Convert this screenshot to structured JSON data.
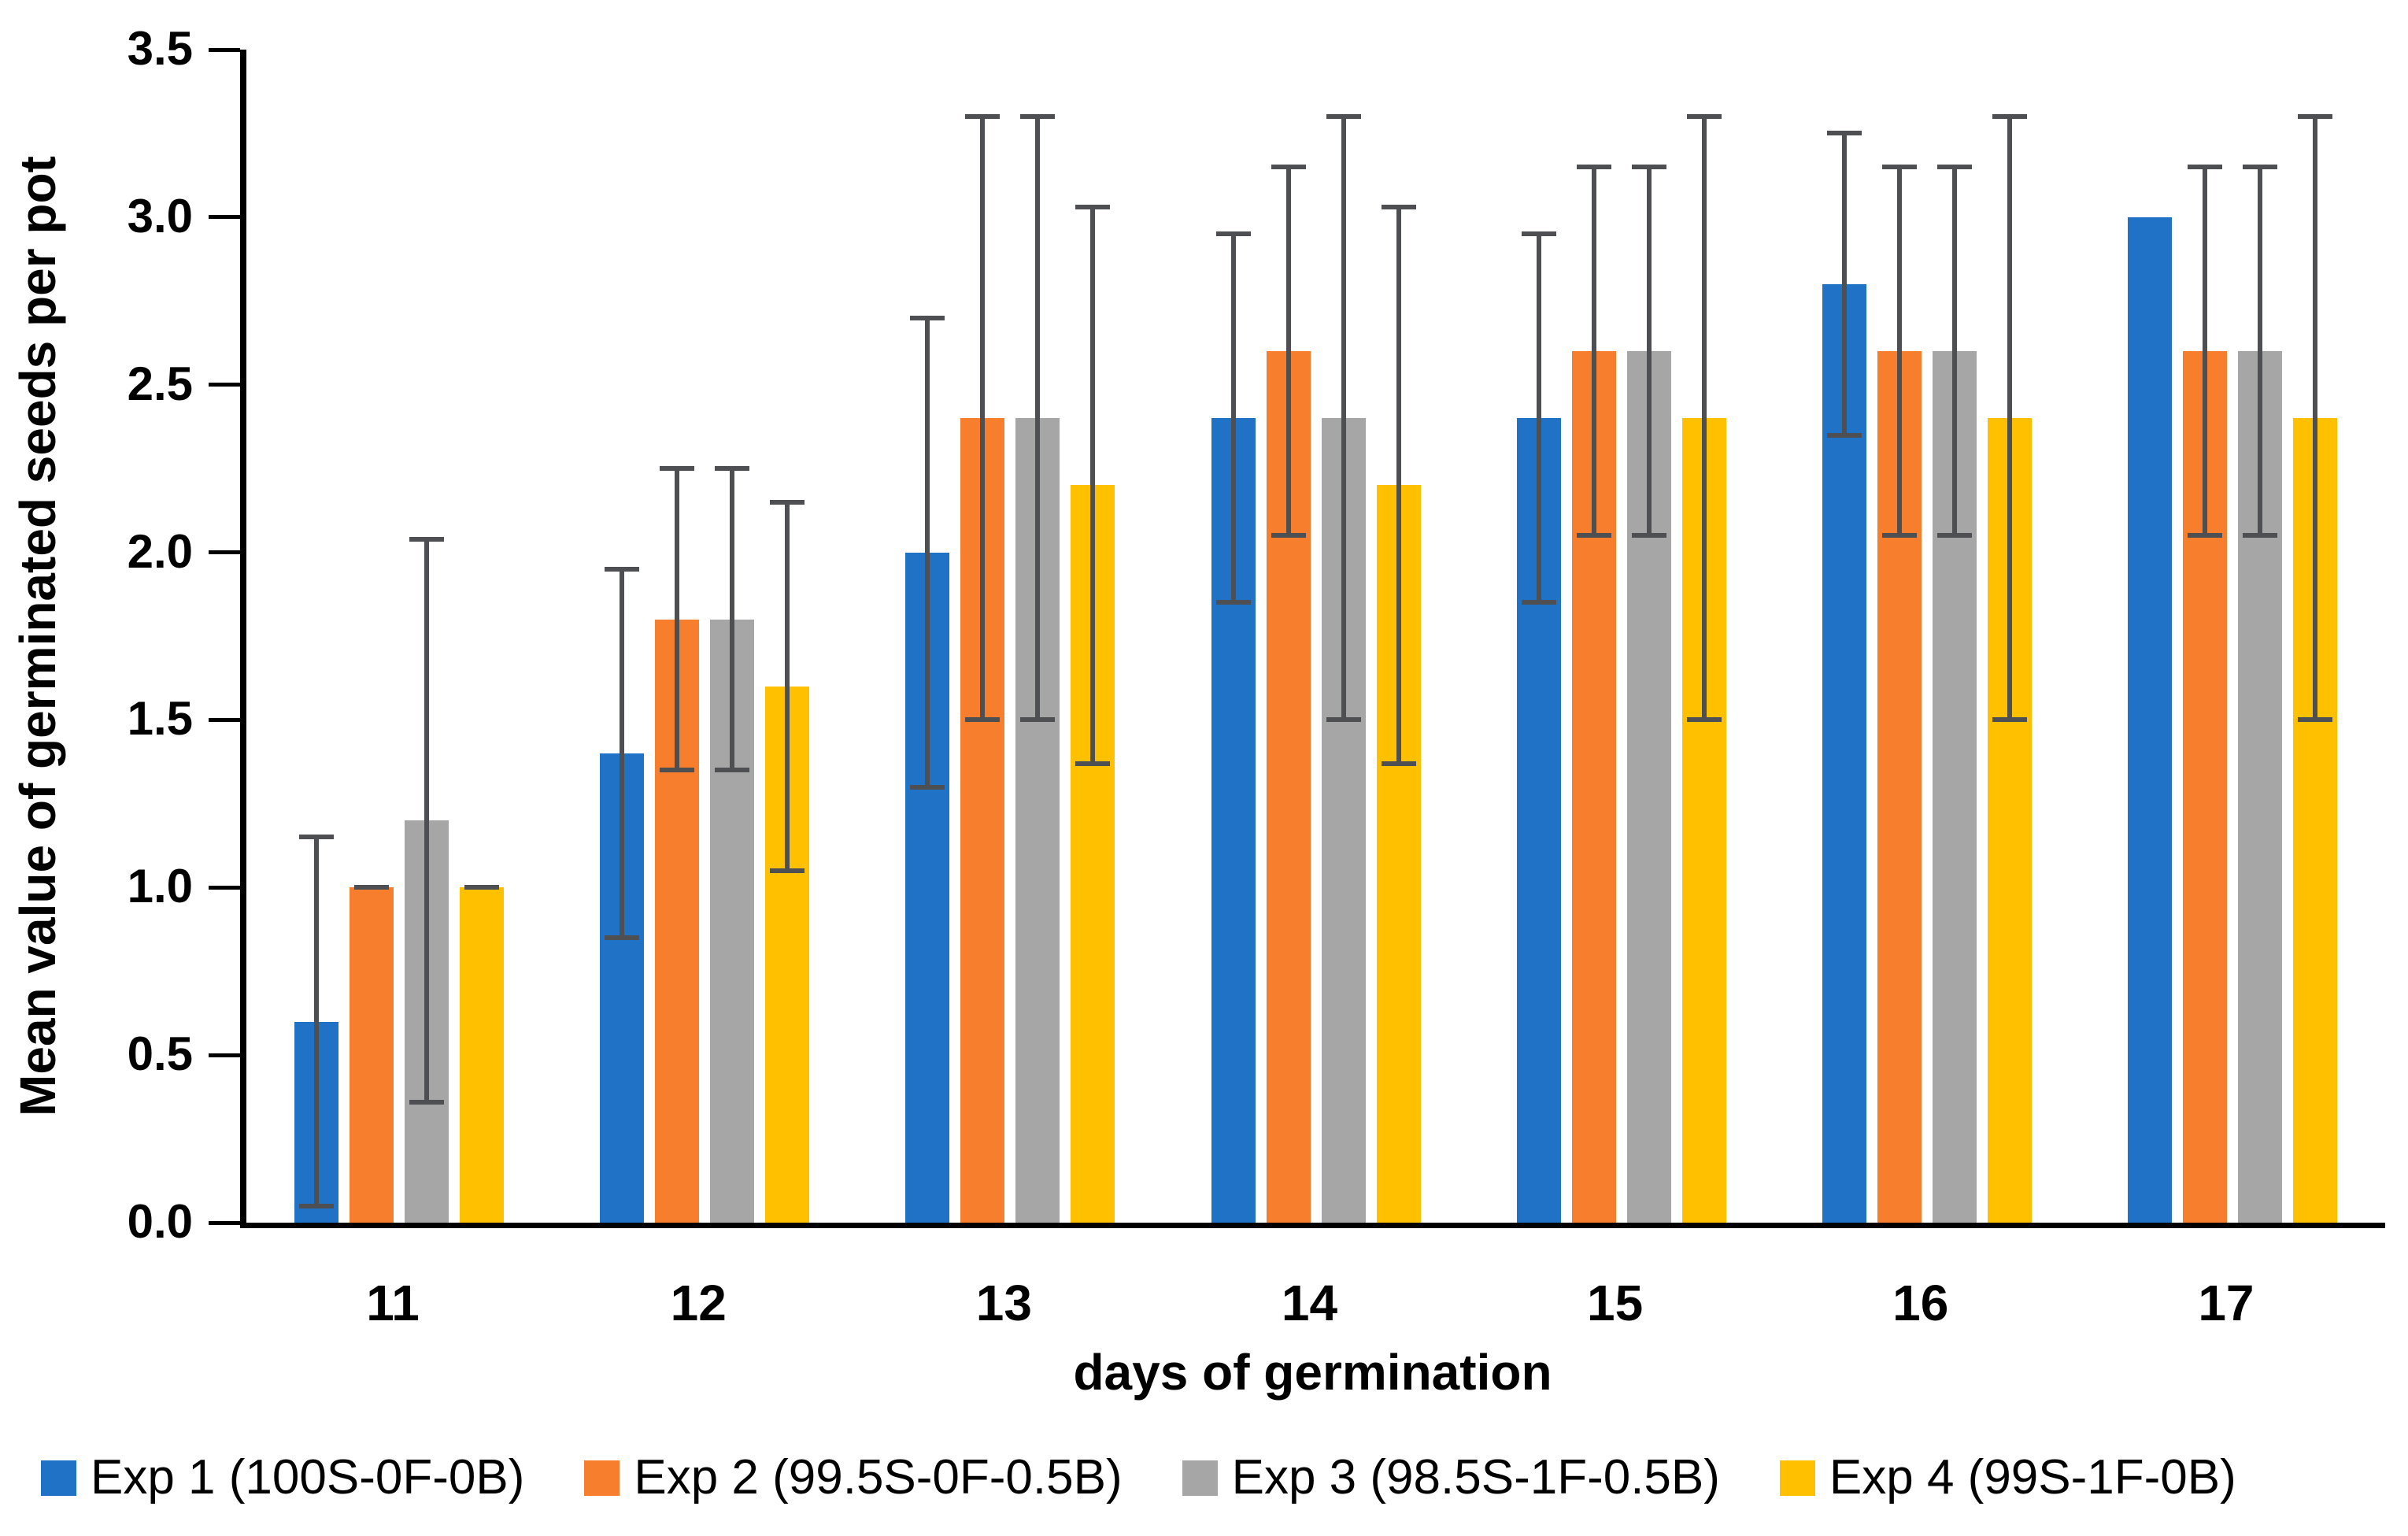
{
  "chart_data": {
    "type": "bar",
    "title": "",
    "xlabel": "days of germination",
    "ylabel": "Mean value of germinated seeds per pot",
    "categories": [
      "11",
      "12",
      "13",
      "14",
      "15",
      "16",
      "17"
    ],
    "ylim": [
      0,
      3.5
    ],
    "ytick_step": 0.5,
    "yticks": [
      "0.0",
      "0.5",
      "1.0",
      "1.5",
      "2.0",
      "2.5",
      "3.0",
      "3.5"
    ],
    "grid": false,
    "legend_position": "bottom",
    "error_bar_color": "#4d4f53",
    "series": [
      {
        "name": "Exp 1 (100S-0F-0B)",
        "color": "#1f72c5",
        "values": [
          0.6,
          1.4,
          2.0,
          2.4,
          2.4,
          2.8,
          3.0
        ],
        "errors": [
          0.55,
          0.55,
          0.7,
          0.55,
          0.55,
          0.45,
          null
        ]
      },
      {
        "name": "Exp 2 (99.5S-0F-0.5B)",
        "color": "#f67e2c",
        "values": [
          1.0,
          1.8,
          2.4,
          2.6,
          2.6,
          2.6,
          2.6
        ],
        "errors": [
          0,
          0.45,
          0.9,
          0.55,
          0.55,
          0.55,
          0.55
        ]
      },
      {
        "name": "Exp 3 (98.5S-1F-0.5B)",
        "color": "#a6a6a6",
        "values": [
          1.2,
          1.8,
          2.4,
          2.4,
          2.6,
          2.6,
          2.6
        ],
        "errors": [
          0.84,
          0.45,
          0.9,
          0.9,
          0.55,
          0.55,
          0.55
        ]
      },
      {
        "name": "Exp 4 (99S-1F-0B)",
        "color": "#ffc000",
        "values": [
          1.0,
          1.6,
          2.2,
          2.2,
          2.4,
          2.4,
          2.4
        ],
        "errors": [
          0,
          0.55,
          0.83,
          0.83,
          0.9,
          0.9,
          0.9
        ]
      }
    ]
  }
}
